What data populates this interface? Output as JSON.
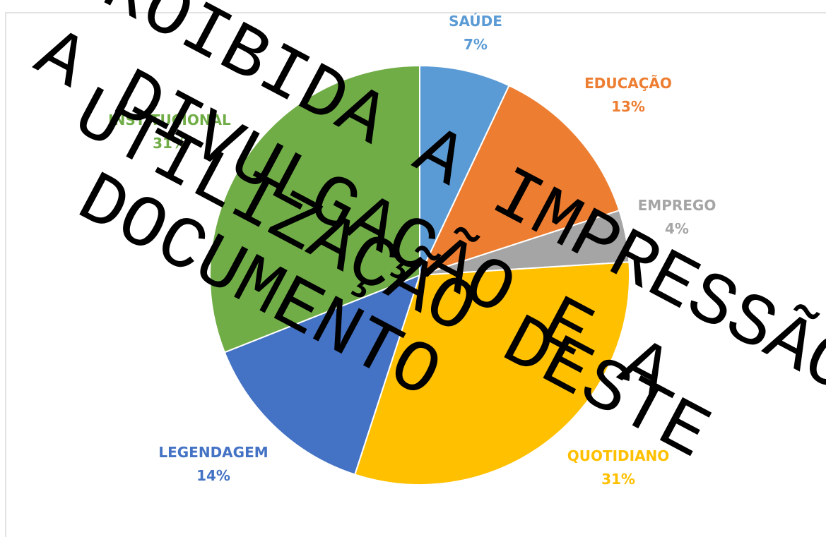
{
  "chart_data": {
    "type": "pie",
    "categories": [
      "SAÚDE",
      "EDUCAÇÃO",
      "EMPREGO",
      "QUOTIDIANO",
      "LEGENDAGEM",
      "INSTITUCIONAL"
    ],
    "values": [
      7,
      13,
      4,
      31,
      14,
      31
    ],
    "value_labels": [
      "7%",
      "13%",
      "4%",
      "31%",
      "14%",
      "31%"
    ],
    "colors": [
      "#5b9bd5",
      "#ed7d31",
      "#a5a5a5",
      "#ffc000",
      "#4472c4",
      "#70ad47"
    ],
    "annotations": [
      "PROIBIDA A IMPRESSÃO",
      "A DIVULGAÇÃO E A",
      "UTILIZAÇÃO DESTE",
      "DOCUMENTO"
    ]
  }
}
